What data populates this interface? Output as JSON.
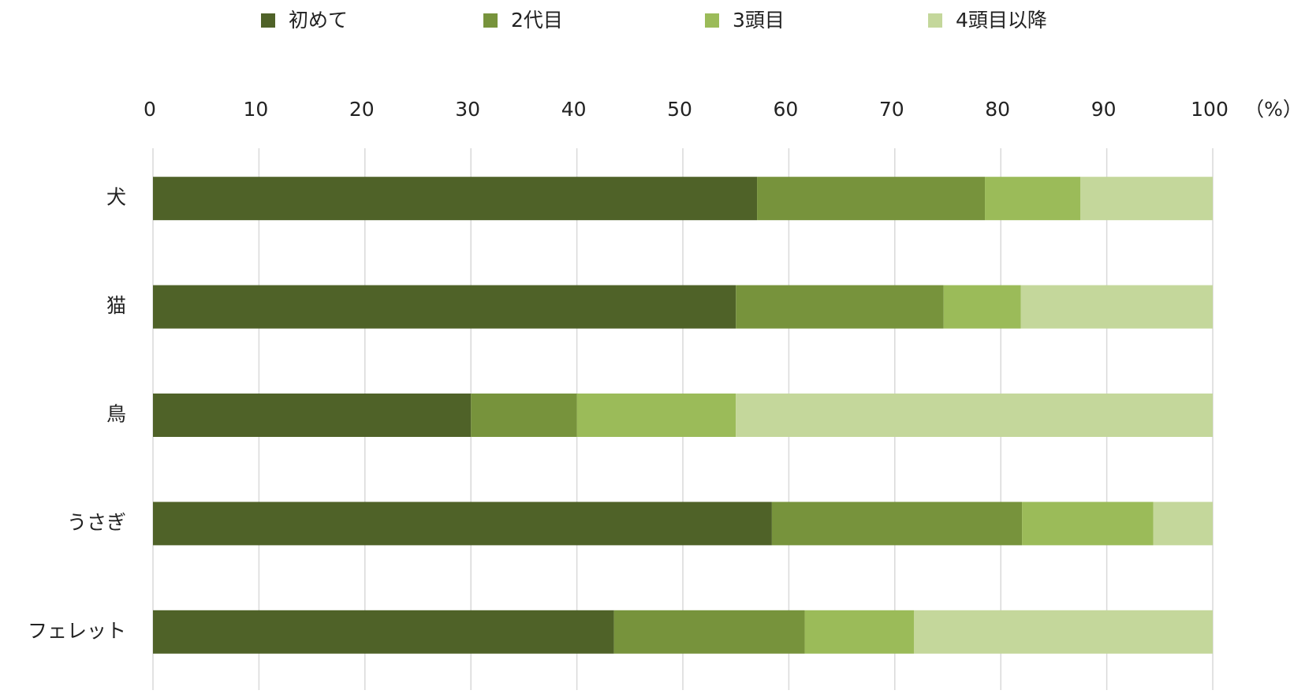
{
  "chart_data": {
    "type": "bar",
    "orientation": "horizontal",
    "stacked": true,
    "categories": [
      "犬",
      "猫",
      "鳥",
      "うさぎ",
      "フェレット"
    ],
    "series": [
      {
        "name": "初めて",
        "color": "#4f6228",
        "values": [
          57,
          55,
          30,
          58.4,
          43.5
        ]
      },
      {
        "name": "2代目",
        "color": "#77933c",
        "values": [
          21.5,
          19.6,
          10,
          23.6,
          18
        ]
      },
      {
        "name": "3頭目",
        "color": "#9bbb59",
        "values": [
          9,
          7.3,
          15,
          12.4,
          10.3
        ]
      },
      {
        "name": "4頭目以降",
        "color": "#c4d79b",
        "values": [
          12.5,
          18.1,
          45,
          5.6,
          28.2
        ]
      }
    ],
    "xlabel": "（%）",
    "xlim": [
      0,
      100
    ],
    "xticks": [
      0,
      10,
      20,
      30,
      40,
      50,
      60,
      70,
      80,
      90,
      100
    ],
    "grid": true,
    "legend": "top"
  }
}
